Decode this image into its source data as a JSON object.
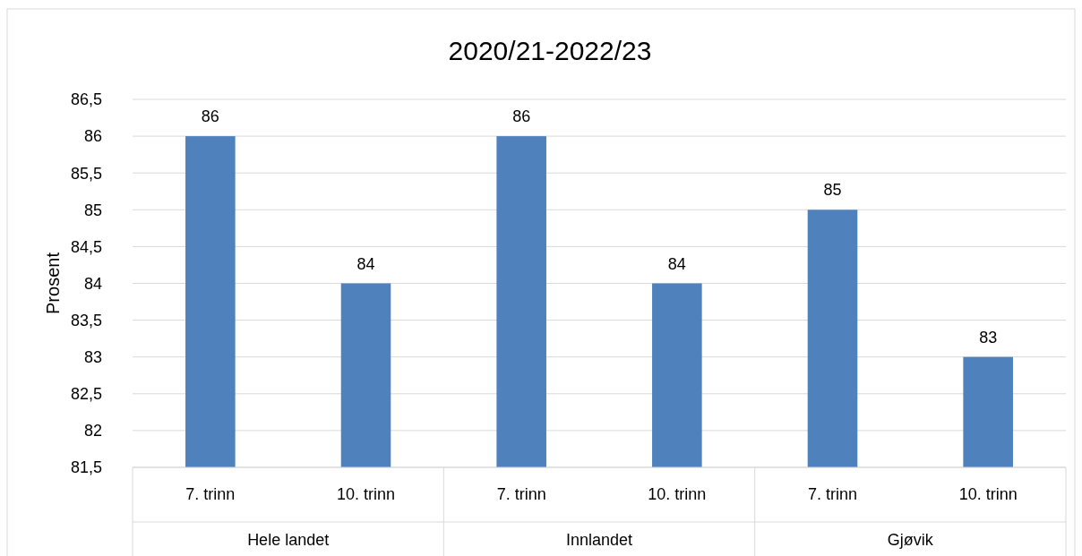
{
  "chart_data": {
    "type": "bar",
    "title": "2020/21-2022/23",
    "ylabel": "Prosent",
    "categories": [
      "7. trinn",
      "10. trinn",
      "7. trinn",
      "10. trinn",
      "7. trinn",
      "10. trinn"
    ],
    "values": [
      86,
      84,
      86,
      84,
      85,
      83
    ],
    "color": "#4f81bd",
    "ylim": [
      81.5,
      86.5
    ],
    "yticks": [
      {
        "value": 81.5,
        "label": "81,5"
      },
      82,
      {
        "value": 82.5,
        "label": "82,5"
      },
      83,
      {
        "value": 83.5,
        "label": "83,5"
      },
      84,
      {
        "value": 84.5,
        "label": "84,5"
      },
      85,
      {
        "value": 85.5,
        "label": "85,5"
      },
      86,
      {
        "value": 86.5,
        "label": "86,5"
      }
    ],
    "grid": "y",
    "data_labels": true,
    "annotations": [
      "Hele landet",
      "Innlandet",
      "Gjøvik"
    ]
  }
}
